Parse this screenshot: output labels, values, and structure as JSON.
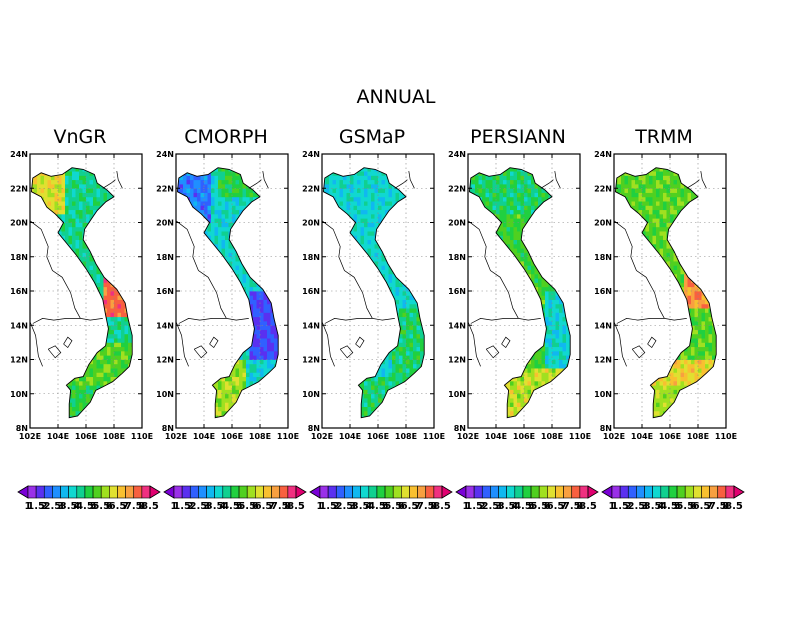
{
  "figure_title": "ANNUAL",
  "lat_ticks": [
    "24N",
    "22N",
    "20N",
    "18N",
    "16N",
    "14N",
    "12N",
    "10N",
    "8N"
  ],
  "lon_ticks": [
    "102E",
    "104E",
    "106E",
    "108E",
    "110E"
  ],
  "colorbar": {
    "labels": [
      "1",
      "1.5",
      "2",
      "2.5",
      "3",
      "3.5",
      "4",
      "4.5",
      "5",
      "5.5",
      "6",
      "6.5",
      "7",
      "7.5",
      "8",
      "8.5"
    ],
    "colors": [
      "#7a00d6",
      "#9a30e8",
      "#5a30f0",
      "#3060ff",
      "#1f8fff",
      "#10b8f0",
      "#10d8d0",
      "#10d090",
      "#20d040",
      "#50d020",
      "#a0e020",
      "#e0e030",
      "#f8c030",
      "#f8a040",
      "#f86040",
      "#f03080",
      "#e00070"
    ]
  },
  "panels": [
    {
      "title": "VnGR"
    },
    {
      "title": "CMORPH"
    },
    {
      "title": "GSMaP"
    },
    {
      "title": "PERSIANN"
    },
    {
      "title": "TRMM"
    }
  ]
}
